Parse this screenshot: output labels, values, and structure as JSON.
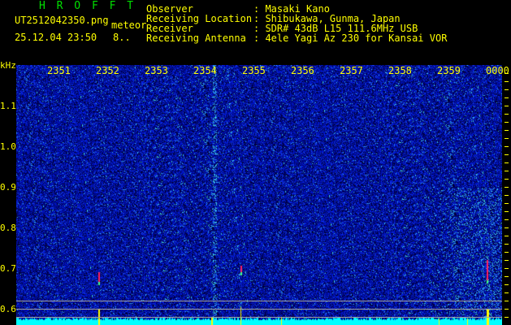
{
  "app_title": "H R O F F T",
  "file_name": "UT2512042350.png",
  "mode": "meteor",
  "datetime": "25.12.04 23:50",
  "count": "8..",
  "info": [
    {
      "label": "Observer",
      "value": "Masaki Kano"
    },
    {
      "label": "Receiving Location",
      "value": "Shibukawa, Gunma, Japan"
    },
    {
      "label": "Receiver",
      "value": "SDR# 43dB L15 111.6MHz USB"
    },
    {
      "label": "Receiving Antenna",
      "value": "4ele Yagi Az 230 for Kansai VOR"
    }
  ],
  "y_axis": {
    "unit": "kHz",
    "ticks": [
      "1.1",
      "1.0",
      "0.9",
      "0.8",
      "0.7",
      "0.6"
    ]
  },
  "x_axis": {
    "ticks": [
      "2351",
      "2352",
      "2353",
      "2354",
      "2355",
      "2356",
      "2357",
      "2358",
      "2359",
      "0000"
    ]
  },
  "colors": {
    "text": "#ffff00",
    "title": "#00e000",
    "background_noise": "#0a1aa0",
    "baseline": "#00ffff"
  }
}
